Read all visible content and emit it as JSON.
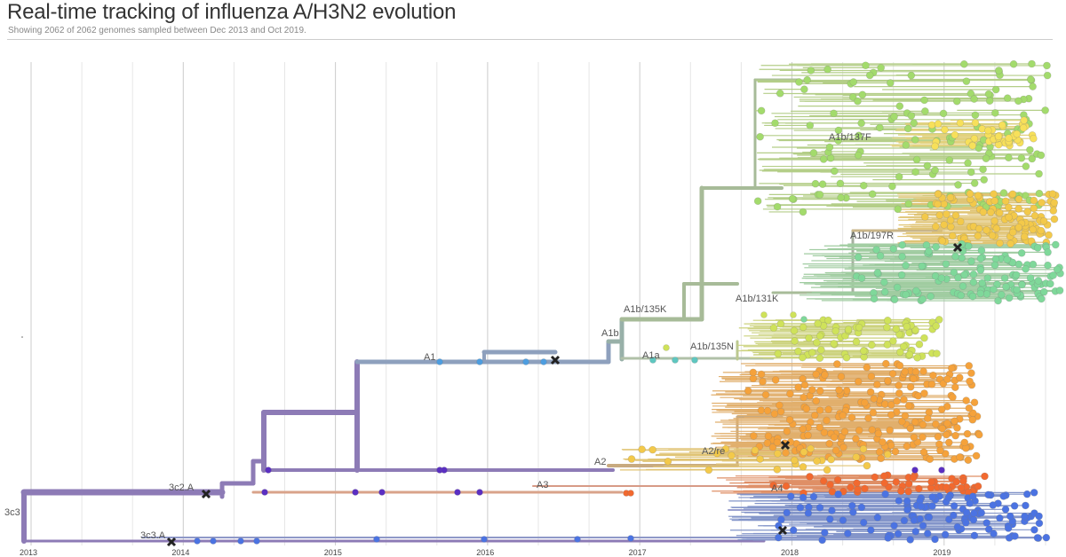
{
  "header": {
    "title": "Real-time tracking of influenza A/H3N2 evolution",
    "subtitle": "Showing 2062 of 2062 genomes sampled between Dec 2013 and Oct 2019."
  },
  "tree": {
    "x_axis_ticks": [
      "2013",
      "2014",
      "2015",
      "2016",
      "2017",
      "2018",
      "2019"
    ],
    "clade_labels": [
      "3c3",
      "3c3.A",
      "3c2.A",
      "A1",
      "A1a",
      "A1b",
      "A1b/135K",
      "A1b/135N",
      "A1b/131K",
      "A1b/197R",
      "A1b/137F",
      "A2",
      "A2/re",
      "A3",
      "A4"
    ],
    "colors": {
      "root": "#8d7bb6",
      "a1_branch": "#8ea0bd",
      "a1b_branch": "#a7bb98",
      "clade_3c3A": "#4b73e2",
      "clade_3c2A": "#5b2fc2",
      "clade_A1": "#4d9de0",
      "clade_A1a": "#5ec7c0",
      "clade_135N": "#cfe25a",
      "clade_131K": "#7fd89a",
      "clade_197R": "#f3c94a",
      "clade_137F": "#f7e05a",
      "clade_A1b_top": "#a3db6c",
      "clade_A2": "#f5a23b",
      "clade_A3": "#f2692f"
    }
  }
}
